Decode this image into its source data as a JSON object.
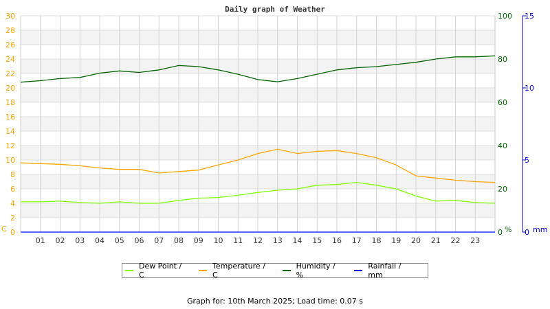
{
  "chart_data": {
    "type": "line",
    "title": "Daily graph of Weather",
    "x_ticks": [
      "01",
      "02",
      "03",
      "04",
      "05",
      "06",
      "07",
      "08",
      "09",
      "10",
      "11",
      "12",
      "13",
      "14",
      "15",
      "16",
      "17",
      "18",
      "19",
      "20",
      "21",
      "22",
      "23"
    ],
    "x_range": [
      0,
      24
    ],
    "x": [
      0,
      1,
      2,
      3,
      4,
      5,
      6,
      7,
      8,
      9,
      10,
      11,
      12,
      13,
      14,
      15,
      16,
      17,
      18,
      19,
      20,
      21,
      22,
      23,
      24
    ],
    "axes": {
      "left": {
        "label": "C",
        "range": [
          0,
          30
        ],
        "ticks": [
          0,
          2,
          4,
          6,
          8,
          10,
          12,
          14,
          16,
          18,
          20,
          22,
          24,
          26,
          28,
          30
        ],
        "color": "#ffa500"
      },
      "right1": {
        "label": "%",
        "range": [
          0,
          100
        ],
        "ticks": [
          0,
          20,
          40,
          60,
          80,
          100
        ],
        "color": "#006400"
      },
      "right2": {
        "label": "mm",
        "range": [
          0,
          15
        ],
        "ticks": [
          0,
          5,
          10,
          15
        ],
        "color": "#0000cc"
      }
    },
    "grid": true,
    "legend_position": "bottom",
    "series": [
      {
        "name": "Dew Point / C",
        "axis": "left",
        "color": "#7fff00",
        "values": [
          4.2,
          4.2,
          4.3,
          4.1,
          4.0,
          4.2,
          4.0,
          4.0,
          4.4,
          4.7,
          4.8,
          5.1,
          5.5,
          5.8,
          6.0,
          6.5,
          6.6,
          6.9,
          6.5,
          6.0,
          5.0,
          4.3,
          4.4,
          4.1,
          4.0
        ]
      },
      {
        "name": "Temperature / C",
        "axis": "left",
        "color": "#ffa500",
        "values": [
          9.6,
          9.5,
          9.4,
          9.2,
          8.9,
          8.7,
          8.7,
          8.2,
          8.4,
          8.6,
          9.3,
          10.0,
          10.9,
          11.5,
          10.9,
          11.2,
          11.3,
          10.9,
          10.3,
          9.3,
          7.8,
          7.5,
          7.2,
          7.0,
          6.9
        ]
      },
      {
        "name": "Humidity / %",
        "axis": "right1",
        "color": "#006400",
        "values": [
          69.3,
          70.0,
          71.0,
          71.5,
          73.5,
          74.5,
          73.8,
          75.0,
          77.0,
          76.5,
          75.0,
          73.0,
          70.5,
          69.5,
          71.0,
          73.0,
          75.0,
          76.0,
          76.5,
          77.5,
          78.5,
          80.0,
          81.0,
          81.0,
          81.5
        ]
      },
      {
        "name": "Rainfall / mm",
        "axis": "right2",
        "color": "#0000ff",
        "values": [
          0,
          0,
          0,
          0,
          0,
          0,
          0,
          0,
          0,
          0,
          0,
          0,
          0,
          0,
          0,
          0,
          0,
          0,
          0,
          0,
          0,
          0,
          0,
          0,
          0
        ]
      }
    ]
  },
  "footer": "Graph for: 10th March 2025; Load time: 0.07 s"
}
